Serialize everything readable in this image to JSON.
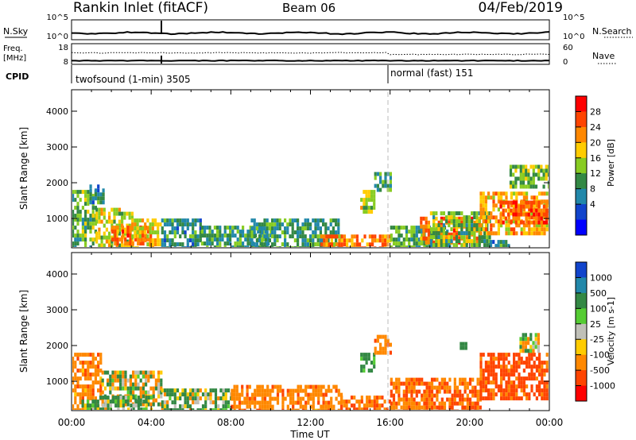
{
  "header": {
    "station": "Rankin Inlet (fitACF)",
    "beam": "Beam 06",
    "date": "04/Feb/2019"
  },
  "noise_panel": {
    "left_label": "N.Sky",
    "right_label": "N.Search",
    "left_ticks": [
      "10^5",
      "10^0"
    ],
    "right_ticks": [
      "10^5",
      "10^0"
    ]
  },
  "freq_panel": {
    "left_label_line1": "Freq.",
    "left_label_line2": "[MHz]",
    "right_label": "Nave",
    "left_ticks": [
      "18",
      "8"
    ],
    "right_ticks": [
      "60",
      "0"
    ]
  },
  "cpid": {
    "label": "CPID",
    "modes": [
      {
        "text": "twofsound (1-min) 3505",
        "start_hour": 0
      },
      {
        "text": "normal (fast) 151",
        "start_hour": 16
      }
    ]
  },
  "xaxis": {
    "label": "Time UT",
    "ticks": [
      "00:00",
      "04:00",
      "08:00",
      "12:00",
      "16:00",
      "20:00",
      "00:00"
    ]
  },
  "chart_data": [
    {
      "type": "heatmap",
      "panel": "power",
      "ylabel": "Slant Range [km]",
      "yticks": [
        1000,
        2000,
        3000,
        4000
      ],
      "ylim": [
        180,
        4600
      ],
      "xlim_hours": [
        0,
        24
      ],
      "colorbar_label": "Power [dB]",
      "colorbar_ticks": [
        "28",
        "24",
        "20",
        "16",
        "12",
        "8",
        "4"
      ],
      "colorbar_colors": [
        "#ff0000",
        "#ff4400",
        "#ff8800",
        "#ffcc00",
        "#88cc22",
        "#338844",
        "#2288aa",
        "#1144cc",
        "#0000ff"
      ],
      "regions": [
        {
          "t0": 0.0,
          "t1": 1.2,
          "r0": 180,
          "r1": 1800,
          "v": 14
        },
        {
          "t0": 0.9,
          "t1": 1.6,
          "r0": 1500,
          "r1": 1950,
          "v": 10
        },
        {
          "t0": 1.2,
          "t1": 3.0,
          "r0": 180,
          "r1": 1300,
          "v": 18
        },
        {
          "t0": 2.0,
          "t1": 4.0,
          "r0": 300,
          "r1": 800,
          "v": 26
        },
        {
          "t0": 3.0,
          "t1": 4.5,
          "r0": 180,
          "r1": 1000,
          "v": 20
        },
        {
          "t0": 4.5,
          "t1": 6.5,
          "r0": 180,
          "r1": 1000,
          "v": 10
        },
        {
          "t0": 6.5,
          "t1": 10.0,
          "r0": 180,
          "r1": 800,
          "v": 12
        },
        {
          "t0": 9.0,
          "t1": 13.5,
          "r0": 180,
          "r1": 1000,
          "v": 11
        },
        {
          "t0": 12.5,
          "t1": 16.0,
          "r0": 180,
          "r1": 550,
          "v": 25
        },
        {
          "t0": 14.5,
          "t1": 15.2,
          "r0": 1200,
          "r1": 1800,
          "v": 18
        },
        {
          "t0": 15.2,
          "t1": 16.0,
          "r0": 1800,
          "r1": 2300,
          "v": 12
        },
        {
          "t0": 16.0,
          "t1": 19.0,
          "r0": 180,
          "r1": 800,
          "v": 13
        },
        {
          "t0": 17.5,
          "t1": 20.5,
          "r0": 350,
          "r1": 1050,
          "v": 26
        },
        {
          "t0": 18.0,
          "t1": 21.0,
          "r0": 200,
          "r1": 1200,
          "v": 14
        },
        {
          "t0": 20.5,
          "t1": 24.0,
          "r0": 600,
          "r1": 1750,
          "v": 22
        },
        {
          "t0": 21.5,
          "t1": 24.0,
          "r0": 900,
          "r1": 1500,
          "v": 28
        },
        {
          "t0": 22.0,
          "t1": 24.0,
          "r0": 1900,
          "r1": 2500,
          "v": 15
        },
        {
          "t0": 21.0,
          "t1": 22.0,
          "r0": 180,
          "r1": 400,
          "v": 10
        }
      ]
    },
    {
      "type": "heatmap",
      "panel": "velocity",
      "ylabel": "Slant Range [km]",
      "yticks": [
        1000,
        2000,
        3000,
        4000
      ],
      "ylim": [
        180,
        4600
      ],
      "xlim_hours": [
        0,
        24
      ],
      "colorbar_label": "Velocity [m s-1]",
      "colorbar_ticks": [
        "1000",
        "500",
        "100",
        "25",
        "-25",
        "-100",
        "-500",
        "-1000"
      ],
      "colorbar_colors": [
        "#1144cc",
        "#2288aa",
        "#338844",
        "#55cc33",
        "#c0c0b8",
        "#ffcc00",
        "#ff8800",
        "#ff4400",
        "#ff0000"
      ],
      "regions": [
        {
          "t0": 0.0,
          "t1": 1.5,
          "r0": 180,
          "r1": 1800,
          "v": -200
        },
        {
          "t0": 1.5,
          "t1": 4.5,
          "r0": 400,
          "r1": 1300,
          "v": 0
        },
        {
          "t0": 0.5,
          "t1": 4.0,
          "r0": 180,
          "r1": 600,
          "v": 80
        },
        {
          "t0": 4.5,
          "t1": 8.0,
          "r0": 180,
          "r1": 800,
          "v": 60
        },
        {
          "t0": 8.0,
          "t1": 13.5,
          "r0": 180,
          "r1": 900,
          "v": -200
        },
        {
          "t0": 13.5,
          "t1": 16.0,
          "r0": 180,
          "r1": 600,
          "v": -300
        },
        {
          "t0": 14.5,
          "t1": 15.2,
          "r0": 1300,
          "r1": 1800,
          "v": 150
        },
        {
          "t0": 15.2,
          "t1": 16.0,
          "r0": 1800,
          "r1": 2300,
          "v": -200
        },
        {
          "t0": 16.0,
          "t1": 20.5,
          "r0": 180,
          "r1": 1100,
          "v": -300
        },
        {
          "t0": 20.5,
          "t1": 24.0,
          "r0": 500,
          "r1": 1800,
          "v": -400
        },
        {
          "t0": 22.5,
          "t1": 23.5,
          "r0": 1900,
          "r1": 2350,
          "v": 0
        },
        {
          "t0": 19.5,
          "t1": 20.0,
          "r0": 1900,
          "r1": 2100,
          "v": 150
        }
      ]
    }
  ],
  "colors": {
    "axis": "#000000",
    "divider": "#bbbbbb"
  }
}
